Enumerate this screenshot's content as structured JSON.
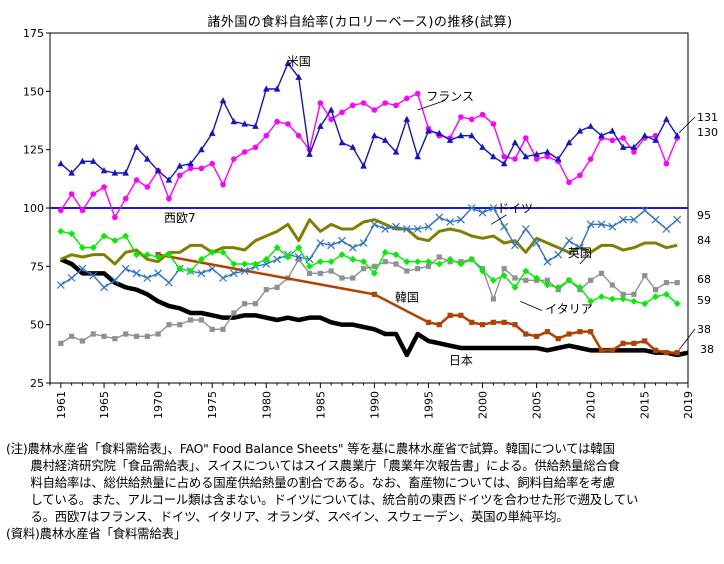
{
  "chart_data": {
    "type": "line",
    "title": "諸外国の食料自給率(カロリーベース)の推移(試算)",
    "xlabel": "",
    "ylabel": "",
    "ylim": [
      25,
      175
    ],
    "yticks": [
      25,
      50,
      75,
      100,
      125,
      150,
      175
    ],
    "xlim": [
      1960,
      2019
    ],
    "xticks": [
      1961,
      1965,
      1970,
      1975,
      1980,
      1985,
      1990,
      1995,
      2000,
      2005,
      2010,
      2015,
      2019
    ],
    "grid": false,
    "legend": "inline labels",
    "reference_line": {
      "y": 100,
      "color": "#1a1ad0"
    },
    "series": [
      {
        "name": "米国",
        "color": "#1414c8",
        "marker": "triangle",
        "end_label": "131",
        "x": [
          1961,
          1962,
          1963,
          1964,
          1965,
          1966,
          1967,
          1968,
          1969,
          1970,
          1971,
          1972,
          1973,
          1974,
          1975,
          1976,
          1977,
          1978,
          1979,
          1980,
          1981,
          1982,
          1983,
          1984,
          1985,
          1986,
          1987,
          1988,
          1989,
          1990,
          1991,
          1992,
          1993,
          1994,
          1995,
          1996,
          1997,
          1998,
          1999,
          2000,
          2001,
          2002,
          2003,
          2004,
          2005,
          2006,
          2007,
          2008,
          2009,
          2010,
          2011,
          2012,
          2013,
          2014,
          2015,
          2016,
          2017,
          2018
        ],
        "y": [
          119,
          115,
          120,
          120,
          116,
          115,
          115,
          126,
          121,
          116,
          112,
          118,
          119,
          125,
          132,
          146,
          137,
          136,
          135,
          151,
          151,
          162,
          156,
          123,
          135,
          142,
          128,
          126,
          118,
          131,
          129,
          124,
          138,
          122,
          133,
          132,
          129,
          131,
          131,
          126,
          122,
          119,
          128,
          122,
          123,
          124,
          121,
          128,
          133,
          135,
          131,
          133,
          126,
          126,
          131,
          129,
          138,
          131
        ],
        "label_year": 1983,
        "label_value": 161
      },
      {
        "name": "フランス",
        "color": "#ff00ff",
        "marker": "circle",
        "end_label": "130",
        "x": [
          1961,
          1962,
          1963,
          1964,
          1965,
          1966,
          1967,
          1968,
          1969,
          1970,
          1971,
          1972,
          1973,
          1974,
          1975,
          1976,
          1977,
          1978,
          1979,
          1980,
          1981,
          1982,
          1983,
          1984,
          1985,
          1986,
          1987,
          1988,
          1989,
          1990,
          1991,
          1992,
          1993,
          1994,
          1995,
          1996,
          1997,
          1998,
          1999,
          2000,
          2001,
          2002,
          2003,
          2004,
          2005,
          2006,
          2007,
          2008,
          2009,
          2010,
          2011,
          2012,
          2013,
          2014,
          2015,
          2016,
          2017,
          2018
        ],
        "y": [
          99,
          106,
          99,
          106,
          109,
          96,
          104,
          112,
          109,
          116,
          104,
          114,
          117,
          117,
          119,
          110,
          121,
          124,
          126,
          131,
          137,
          136,
          131,
          125,
          145,
          138,
          141,
          144,
          145,
          142,
          145,
          144,
          147,
          149,
          134,
          131,
          130,
          139,
          138,
          140,
          136,
          122,
          121,
          130,
          121,
          122,
          120,
          111,
          114,
          121,
          130,
          129,
          130,
          124,
          130,
          131,
          119,
          130
        ],
        "label_year": 1997,
        "label_value": 146
      },
      {
        "name": "ドイツ",
        "color": "#2d72c8",
        "marker": "x",
        "end_label": "95",
        "x": [
          1961,
          1962,
          1963,
          1964,
          1965,
          1966,
          1967,
          1968,
          1969,
          1970,
          1971,
          1972,
          1973,
          1974,
          1975,
          1976,
          1977,
          1978,
          1979,
          1980,
          1981,
          1982,
          1983,
          1984,
          1985,
          1986,
          1987,
          1988,
          1989,
          1990,
          1991,
          1992,
          1993,
          1994,
          1995,
          1996,
          1997,
          1998,
          1999,
          2000,
          2001,
          2002,
          2003,
          2004,
          2005,
          2006,
          2007,
          2008,
          2009,
          2010,
          2011,
          2012,
          2013,
          2014,
          2015,
          2016,
          2017,
          2018
        ],
        "y": [
          67,
          70,
          74,
          71,
          66,
          69,
          74,
          72,
          70,
          72,
          68,
          74,
          73,
          72,
          74,
          70,
          72,
          73,
          75,
          76,
          78,
          80,
          79,
          78,
          85,
          84,
          86,
          83,
          85,
          93,
          91,
          92,
          91,
          91,
          92,
          96,
          94,
          95,
          100,
          98,
          100,
          92,
          84,
          91,
          85,
          77,
          80,
          86,
          83,
          93,
          93,
          92,
          95,
          95,
          99,
          95,
          91,
          95
        ],
        "label_year": 2003,
        "label_value": 98
      },
      {
        "name": "西欧7",
        "color": "#808000",
        "marker": "none",
        "end_label": "84",
        "x": [
          1961,
          1962,
          1963,
          1964,
          1965,
          1966,
          1967,
          1968,
          1969,
          1970,
          1971,
          1972,
          1973,
          1974,
          1975,
          1976,
          1977,
          1978,
          1979,
          1980,
          1981,
          1982,
          1983,
          1984,
          1985,
          1986,
          1987,
          1988,
          1989,
          1990,
          1991,
          1992,
          1993,
          1994,
          1995,
          1996,
          1997,
          1998,
          1999,
          2000,
          2001,
          2002,
          2003,
          2004,
          2005,
          2006,
          2007,
          2008,
          2009,
          2010,
          2011,
          2012,
          2013,
          2014,
          2015,
          2016,
          2017,
          2018
        ],
        "y": [
          78,
          80,
          79,
          80,
          80,
          76,
          81,
          82,
          78,
          77,
          81,
          81,
          84,
          84,
          81,
          83,
          83,
          82,
          86,
          88,
          90,
          93,
          86,
          95,
          90,
          93,
          91,
          91,
          94,
          95,
          93,
          91,
          91,
          87,
          86,
          90,
          91,
          90,
          88,
          87,
          88,
          85,
          86,
          81,
          87,
          85,
          83,
          81,
          83,
          81,
          84,
          84,
          82,
          83,
          85,
          85,
          83,
          84
        ],
        "label_year": 1972,
        "label_value": 94
      },
      {
        "name": "英国",
        "color": "#909090",
        "marker": "square",
        "end_label": "68",
        "x": [
          1961,
          1962,
          1963,
          1964,
          1965,
          1966,
          1967,
          1968,
          1969,
          1970,
          1971,
          1972,
          1973,
          1974,
          1975,
          1976,
          1977,
          1978,
          1979,
          1980,
          1981,
          1982,
          1983,
          1984,
          1985,
          1986,
          1987,
          1988,
          1989,
          1990,
          1991,
          1992,
          1993,
          1994,
          1995,
          1996,
          1997,
          1998,
          1999,
          2000,
          2001,
          2002,
          2003,
          2004,
          2005,
          2006,
          2007,
          2008,
          2009,
          2010,
          2011,
          2012,
          2013,
          2014,
          2015,
          2016,
          2017,
          2018
        ],
        "y": [
          42,
          45,
          43,
          46,
          45,
          44,
          46,
          45,
          45,
          46,
          50,
          50,
          52,
          52,
          48,
          48,
          55,
          59,
          59,
          65,
          66,
          70,
          78,
          72,
          72,
          73,
          70,
          70,
          74,
          75,
          77,
          76,
          73,
          74,
          75,
          79,
          77,
          77,
          78,
          74,
          61,
          74,
          70,
          69,
          69,
          69,
          65,
          69,
          65,
          69,
          72,
          67,
          63,
          63,
          71,
          65,
          68,
          68
        ],
        "label_year": 2009,
        "label_value": 79
      },
      {
        "name": "イタリア",
        "color": "#00ee00",
        "marker": "diamond",
        "end_label": "59",
        "x": [
          1961,
          1962,
          1963,
          1964,
          1965,
          1966,
          1967,
          1968,
          1969,
          1970,
          1971,
          1972,
          1973,
          1974,
          1975,
          1976,
          1977,
          1978,
          1979,
          1980,
          1981,
          1982,
          1983,
          1984,
          1985,
          1986,
          1987,
          1988,
          1989,
          1990,
          1991,
          1992,
          1993,
          1994,
          1995,
          1996,
          1997,
          1998,
          1999,
          2000,
          2001,
          2002,
          2003,
          2004,
          2005,
          2006,
          2007,
          2008,
          2009,
          2010,
          2011,
          2012,
          2013,
          2014,
          2015,
          2016,
          2017,
          2018
        ],
        "y": [
          90,
          89,
          83,
          83,
          88,
          86,
          88,
          80,
          80,
          79,
          80,
          74,
          73,
          78,
          81,
          81,
          76,
          76,
          76,
          78,
          83,
          79,
          83,
          75,
          77,
          77,
          80,
          78,
          77,
          72,
          81,
          80,
          77,
          77,
          77,
          76,
          78,
          76,
          78,
          73,
          69,
          71,
          66,
          73,
          70,
          67,
          66,
          69,
          66,
          60,
          62,
          61,
          61,
          60,
          59,
          62,
          63,
          59
        ],
        "label_year": 2008,
        "label_value": 55
      },
      {
        "name": "韓国",
        "color": "#b24000",
        "marker": "square",
        "end_label": "38",
        "x": [
          1970,
          1990,
          1995,
          1996,
          1997,
          1998,
          1999,
          2000,
          2001,
          2002,
          2003,
          2004,
          2005,
          2006,
          2007,
          2008,
          2009,
          2010,
          2011,
          2012,
          2013,
          2014,
          2015,
          2016,
          2017,
          2018
        ],
        "y": [
          80,
          63,
          51,
          50,
          54,
          54,
          51,
          50,
          51,
          51,
          50,
          46,
          45,
          47,
          44,
          46,
          47,
          47,
          39,
          39,
          42,
          42,
          43,
          39,
          38,
          38
        ],
        "label_year": 1993,
        "label_value": 60
      },
      {
        "name": "日本",
        "color": "#000000",
        "marker": "none",
        "end_label": "38",
        "x": [
          1961,
          1962,
          1963,
          1964,
          1965,
          1966,
          1967,
          1968,
          1969,
          1970,
          1971,
          1972,
          1973,
          1974,
          1975,
          1976,
          1977,
          1978,
          1979,
          1980,
          1981,
          1982,
          1983,
          1984,
          1985,
          1986,
          1987,
          1988,
          1989,
          1990,
          1991,
          1992,
          1993,
          1994,
          1995,
          1996,
          1997,
          1998,
          1999,
          2000,
          2001,
          2002,
          2003,
          2004,
          2005,
          2006,
          2007,
          2008,
          2009,
          2010,
          2011,
          2012,
          2013,
          2014,
          2015,
          2016,
          2017,
          2018,
          2019
        ],
        "y": [
          78,
          76,
          72,
          72,
          72,
          68,
          66,
          65,
          63,
          60,
          58,
          57,
          55,
          55,
          54,
          53,
          53,
          54,
          54,
          53,
          52,
          53,
          52,
          53,
          53,
          51,
          50,
          50,
          49,
          48,
          46,
          46,
          37,
          46,
          43,
          42,
          41,
          40,
          40,
          40,
          40,
          40,
          40,
          40,
          40,
          39,
          40,
          41,
          40,
          39,
          39,
          39,
          39,
          39,
          39,
          38,
          38,
          37,
          38
        ],
        "label_year": 1998,
        "label_value": 33
      }
    ]
  },
  "notes": [
    "(注)農林水産省「食料需給表」、FAO\" Food Balance Sheets\" 等を基に農林水産省で試算。韓国については韓国",
    "　　農村経済研究院「食品需給表」、スイスについてはスイス農業庁「農業年次報告書」による。供給熱量総合食",
    "　　料自給率は、総供給熱量に占める国産供給熱量の割合である。なお、畜産物については、飼料自給率を考慮",
    "　　している。また、アルコール類は含まない。ドイツについては、統合前の東西ドイツを合わせた形で遡及してい",
    "　　る。西欧7はフランス、ドイツ、イタリア、オランダ、スペイン、スウェーデン、英国の単純平均。",
    "(資料)農林水産省「食料需給表」"
  ]
}
